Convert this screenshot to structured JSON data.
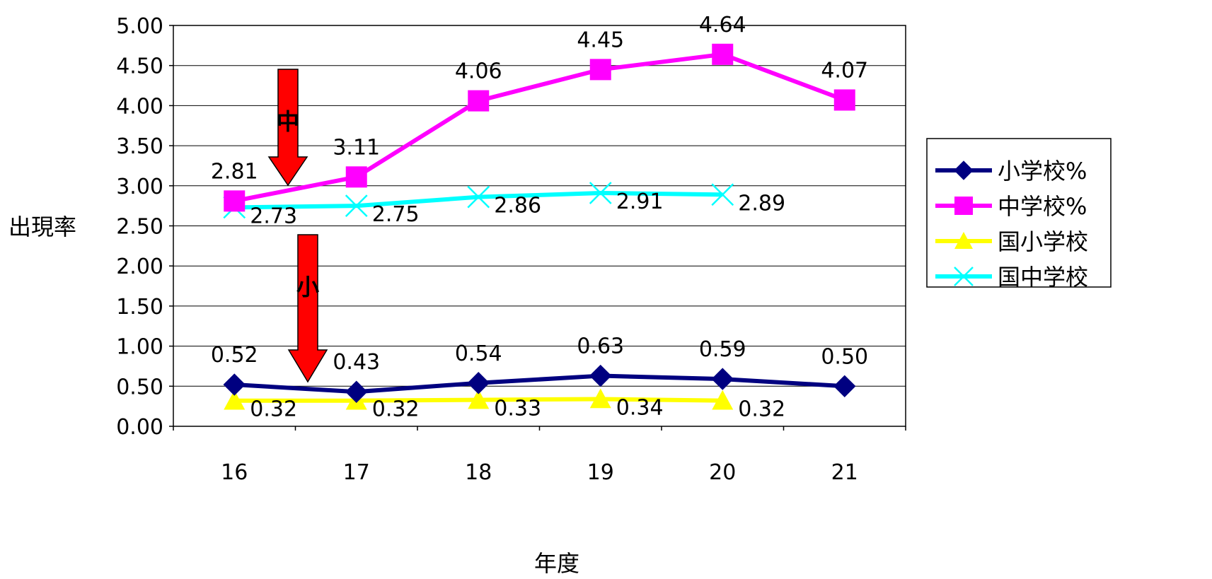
{
  "chart_data": {
    "type": "line",
    "xlabel": "年度",
    "ylabel": "出現率",
    "x_categories": [
      "16",
      "17",
      "18",
      "19",
      "20",
      "21"
    ],
    "y_ticks": [
      "0.00",
      "0.50",
      "1.00",
      "1.50",
      "2.00",
      "2.50",
      "3.00",
      "3.50",
      "4.00",
      "4.50",
      "5.00"
    ],
    "ylim": [
      0,
      5
    ],
    "grid": "horizontal",
    "legend_position": "right",
    "series": [
      {
        "name": "小学校%",
        "color": "#000080",
        "marker": "diamond",
        "values": [
          0.52,
          0.43,
          0.54,
          0.63,
          0.59,
          0.5
        ],
        "labels": [
          "0.52",
          "0.43",
          "0.54",
          "0.63",
          "0.59",
          "0.50"
        ]
      },
      {
        "name": "中学校%",
        "color": "#ff00ff",
        "marker": "square",
        "values": [
          2.81,
          3.11,
          4.06,
          4.45,
          4.64,
          4.07
        ],
        "labels": [
          "2.81",
          "3.11",
          "4.06",
          "4.45",
          "4.64",
          "4.07"
        ]
      },
      {
        "name": "国小学校",
        "color": "#ffff00",
        "marker": "triangle",
        "values": [
          0.32,
          0.32,
          0.33,
          0.34,
          0.32,
          null
        ],
        "labels": [
          "0.32",
          "0.32",
          "0.33",
          "0.34",
          "0.32",
          null
        ]
      },
      {
        "name": "国中学校",
        "color": "#00ffff",
        "marker": "x",
        "values": [
          2.73,
          2.75,
          2.86,
          2.91,
          2.89,
          null
        ],
        "labels": [
          "2.73",
          "2.75",
          "2.86",
          "2.91",
          "2.89",
          null
        ]
      }
    ],
    "annotations": [
      {
        "text": "中",
        "color": "#ff0000"
      },
      {
        "text": "小",
        "color": "#ff0000"
      }
    ]
  }
}
